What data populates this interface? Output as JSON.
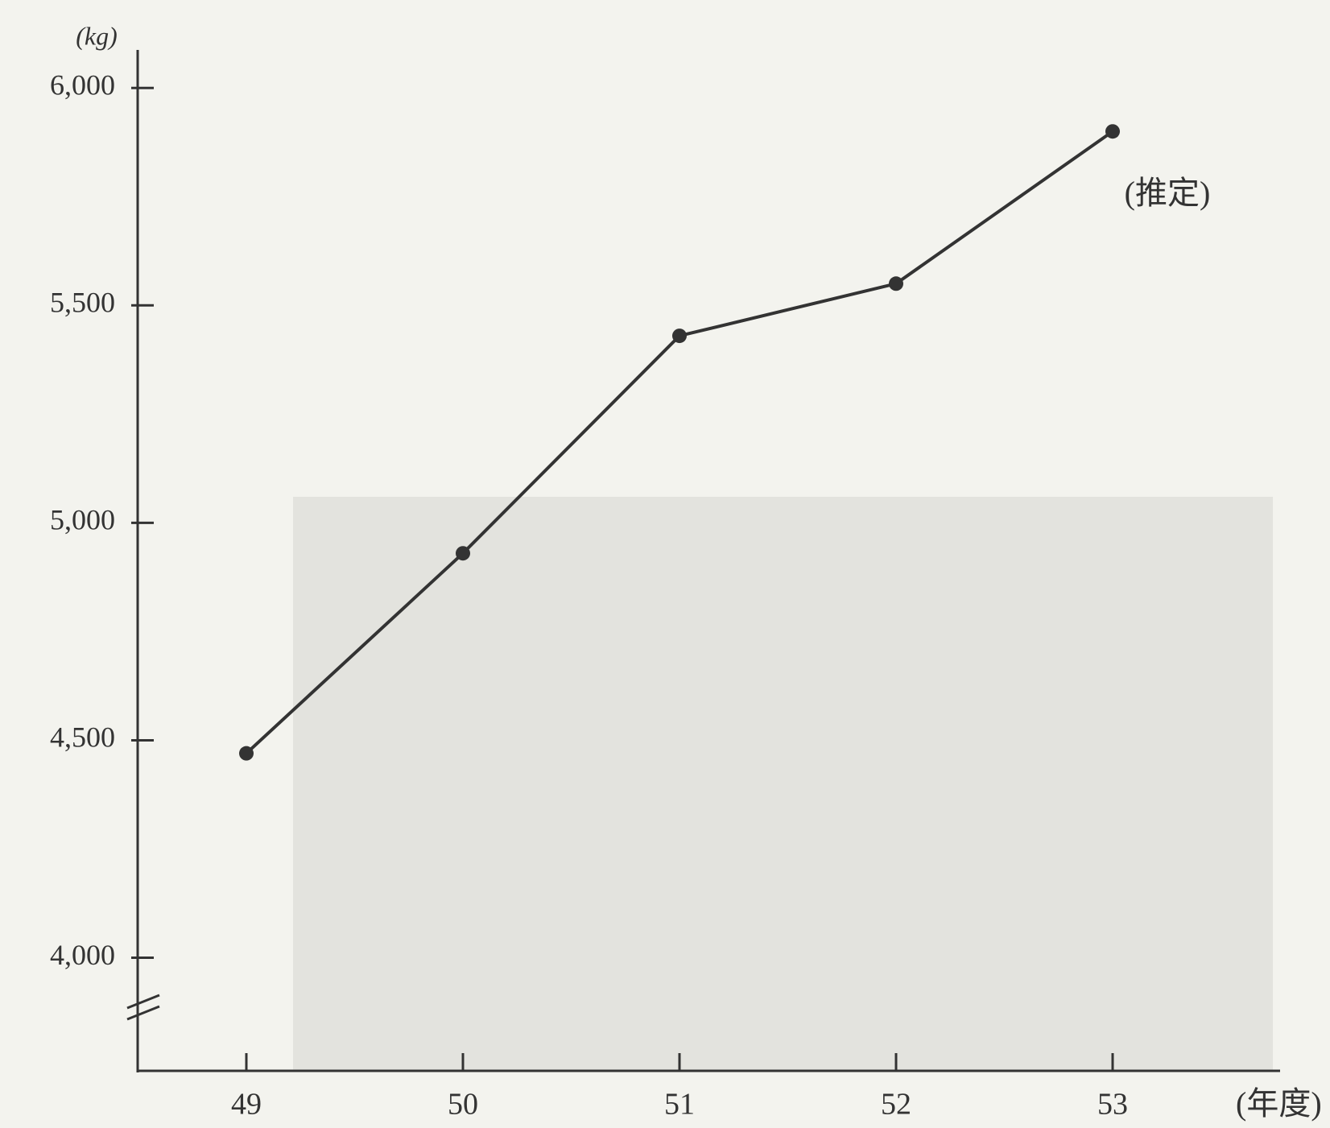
{
  "chart_data": {
    "type": "line",
    "unit_label": "(kg)",
    "annotation": "(推定)",
    "x_label": "(年度)",
    "categories": [
      "49",
      "50",
      "51",
      "52",
      "53"
    ],
    "values": [
      4470,
      4930,
      5430,
      5550,
      5900
    ],
    "color": "#333333",
    "ylim": [
      3740,
      6080
    ],
    "yticks": [
      {
        "value": 4000,
        "label": "4,000"
      },
      {
        "value": 4500,
        "label": "4,500"
      },
      {
        "value": 5000,
        "label": "5,000"
      },
      {
        "value": 5500,
        "label": "5,500"
      },
      {
        "value": 6000,
        "label": "6,000"
      }
    ]
  }
}
